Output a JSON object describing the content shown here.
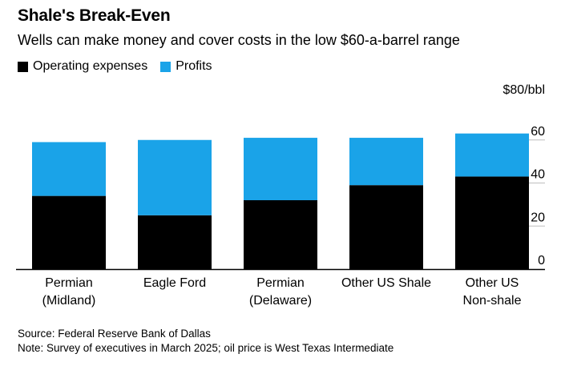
{
  "chart_data": {
    "type": "bar",
    "stacked": true,
    "title": "Shale's Break-Even",
    "subtitle": "Wells can make money and cover costs in the low $60-a-barrel range",
    "categories": [
      [
        "Permian",
        "(Midland)"
      ],
      [
        "Eagle Ford"
      ],
      [
        "Permian",
        "(Delaware)"
      ],
      [
        "Other US Shale"
      ],
      [
        "Other US",
        "Non-shale"
      ]
    ],
    "series": [
      {
        "name": "Operating expenses",
        "color": "#000000",
        "values": [
          34,
          25,
          32,
          39,
          43
        ]
      },
      {
        "name": "Profits",
        "color": "#1aa3e8",
        "values": [
          25,
          35,
          29,
          22,
          20
        ]
      }
    ],
    "yticks": [
      {
        "value": 0,
        "label": "0"
      },
      {
        "value": 20,
        "label": "20"
      },
      {
        "value": 40,
        "label": "40"
      },
      {
        "value": 60,
        "label": "60"
      }
    ],
    "ytop_label": "$80/bbl",
    "ylim": [
      0,
      80
    ],
    "grid": true,
    "legend_position": "top-left"
  },
  "notes": {
    "source": "Source: Federal Reserve Bank of Dallas",
    "note": "Note: Survey of executives in March 2025; oil price is West Texas Intermediate"
  }
}
